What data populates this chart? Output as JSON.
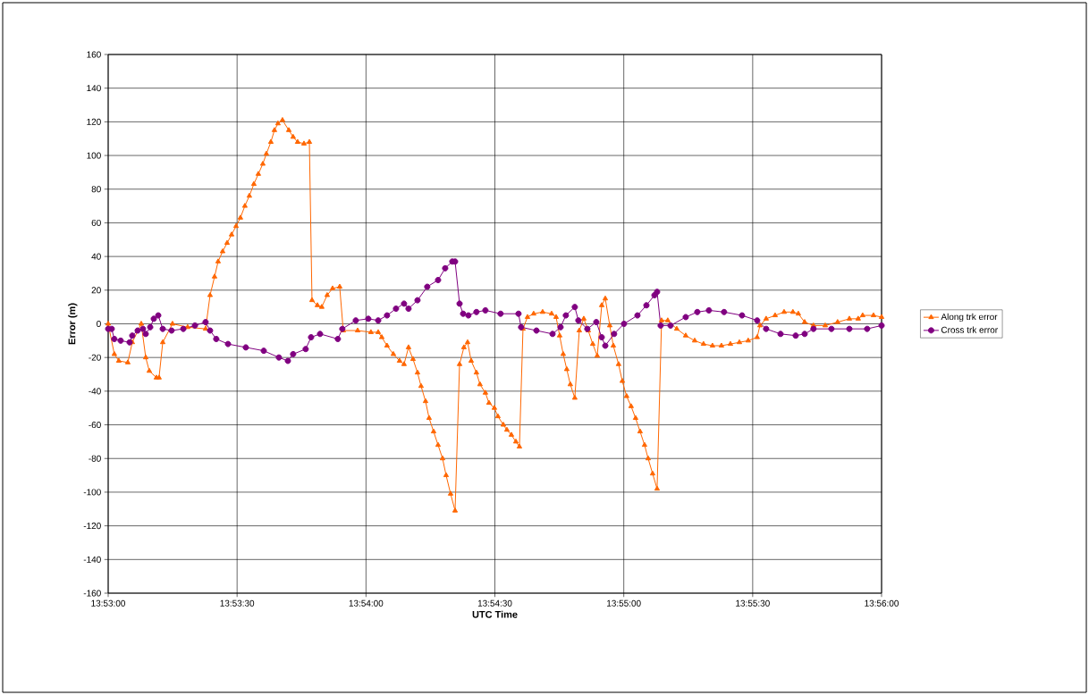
{
  "chart_data": {
    "type": "line",
    "xlabel": "UTC Time",
    "ylabel": "Error (m)",
    "xlim": [
      13.883333,
      13.933333
    ],
    "ylim": [
      -160,
      160
    ],
    "xticks": [
      {
        "value": 13.883333,
        "label": "13:53:00"
      },
      {
        "value": 13.891667,
        "label": "13:53:30"
      },
      {
        "value": 13.9,
        "label": "13:54:00"
      },
      {
        "value": 13.908333,
        "label": "13:54:30"
      },
      {
        "value": 13.916667,
        "label": "13:55:00"
      },
      {
        "value": 13.925,
        "label": "13:55:30"
      },
      {
        "value": 13.933333,
        "label": "13:56:00"
      }
    ],
    "yticks": [
      -160,
      -140,
      -120,
      -100,
      -80,
      -60,
      -40,
      -20,
      0,
      20,
      40,
      60,
      80,
      100,
      120,
      140,
      160
    ],
    "grid": true,
    "legend": "right",
    "line_style": "solid",
    "series": [
      {
        "name": "Along trk error",
        "color": "#ff6600",
        "marker": "triangle",
        "x": [
          13.883333,
          13.88373,
          13.88402,
          13.8846,
          13.88489,
          13.88547,
          13.88576,
          13.88599,
          13.88645,
          13.88662,
          13.88686,
          13.88749,
          13.88847,
          13.88963,
          13.88992,
          13.89021,
          13.89044,
          13.89073,
          13.89102,
          13.89131,
          13.8916,
          13.89188,
          13.89217,
          13.89246,
          13.89275,
          13.89304,
          13.89333,
          13.89356,
          13.89385,
          13.89408,
          13.89431,
          13.8946,
          13.89501,
          13.89529,
          13.89558,
          13.89599,
          13.89634,
          13.89651,
          13.89686,
          13.89714,
          13.89749,
          13.89784,
          13.8983,
          13.89853,
          13.89946,
          13.90032,
          13.90079,
          13.90102,
          13.90136,
          13.90177,
          13.90217,
          13.90246,
          13.90275,
          13.90304,
          13.90333,
          13.90356,
          13.90385,
          13.90408,
          13.90437,
          13.90466,
          13.90495,
          13.90518,
          13.90547,
          13.90576,
          13.90605,
          13.90633,
          13.90657,
          13.9068,
          13.90714,
          13.90737,
          13.90772,
          13.90795,
          13.9083,
          13.90853,
          13.90888,
          13.90911,
          13.9094,
          13.90969,
          13.90992,
          13.91015,
          13.91044,
          13.91084,
          13.91142,
          13.912,
          13.91229,
          13.91252,
          13.91275,
          13.91298,
          13.91321,
          13.9135,
          13.91379,
          13.91408,
          13.91437,
          13.91466,
          13.91495,
          13.91524,
          13.91547,
          13.91576,
          13.91599,
          13.91633,
          13.91657,
          13.91685,
          13.91714,
          13.91743,
          13.91772,
          13.91801,
          13.91824,
          13.91853,
          13.91882,
          13.91911,
          13.91951,
          13.92009,
          13.92067,
          13.92125,
          13.92182,
          13.9224,
          13.92298,
          13.92356,
          13.92414,
          13.92471,
          13.92529,
          13.92547,
          13.92587,
          13.92645,
          13.92703,
          13.9276,
          13.92795,
          13.92836,
          13.92893,
          13.92969,
          13.93049,
          13.93125,
          13.93182,
          13.93211,
          13.93281,
          13.933333
        ],
        "values": [
          0,
          -18,
          -22,
          -23,
          -11,
          0,
          -20,
          -28,
          -32,
          -32,
          -11,
          0,
          -2,
          -3,
          17,
          28,
          37,
          43,
          48,
          53,
          58,
          63,
          70,
          76,
          83,
          89,
          95,
          101,
          108,
          115,
          119,
          121,
          115,
          111,
          108,
          107,
          108,
          14,
          11,
          10,
          17,
          21,
          22,
          -4,
          -4,
          -5,
          -5,
          -8,
          -13,
          -18,
          -22,
          -24,
          -14,
          -21,
          -29,
          -37,
          -46,
          -56,
          -64,
          -72,
          -80,
          -90,
          -101,
          -111,
          -24,
          -14,
          -11,
          -22,
          -29,
          -36,
          -41,
          -47,
          -50,
          -55,
          -60,
          -63,
          -66,
          -70,
          -73,
          -3,
          4,
          6,
          7,
          6,
          4,
          -7,
          -18,
          -27,
          -36,
          -44,
          -4,
          3,
          -4,
          -12,
          -19,
          11,
          15,
          -1,
          -13,
          -24,
          -34,
          -43,
          -49,
          -56,
          -64,
          -72,
          -80,
          -89,
          -98,
          2,
          2,
          -3,
          -7,
          -10,
          -12,
          -13,
          -13,
          -12,
          -11,
          -10,
          -8,
          -1,
          3,
          5,
          7,
          7,
          6,
          1,
          -1,
          -1,
          1,
          3,
          3,
          5,
          5,
          4
        ]
      },
      {
        "name": "Cross trk error",
        "color": "#800080",
        "marker": "circle",
        "x": [
          13.883333,
          13.88356,
          13.88373,
          13.88414,
          13.88472,
          13.88489,
          13.88524,
          13.88558,
          13.88576,
          13.88605,
          13.88628,
          13.88657,
          13.88686,
          13.88743,
          13.88819,
          13.88894,
          13.88963,
          13.88992,
          13.89032,
          13.89108,
          13.89223,
          13.89339,
          13.89437,
          13.89495,
          13.89529,
          13.8961,
          13.89645,
          13.89703,
          13.89818,
          13.89847,
          13.89934,
          13.90015,
          13.90079,
          13.90136,
          13.90194,
          13.90246,
          13.90275,
          13.90333,
          13.90396,
          13.90466,
          13.90512,
          13.90558,
          13.90576,
          13.90605,
          13.90628,
          13.90662,
          13.90714,
          13.90772,
          13.9087,
          13.90986,
          13.91003,
          13.91102,
          13.91206,
          13.91258,
          13.91292,
          13.9135,
          13.91373,
          13.91431,
          13.91489,
          13.91524,
          13.91547,
          13.91604,
          13.91668,
          13.91755,
          13.91813,
          13.91865,
          13.91882,
          13.91905,
          13.91969,
          13.92067,
          13.92142,
          13.92217,
          13.92315,
          13.92431,
          13.92529,
          13.92587,
          13.9268,
          13.92778,
          13.92836,
          13.92893,
          13.93009,
          13.93125,
          13.9324,
          13.933333
        ],
        "values": [
          -3,
          -3,
          -9,
          -10,
          -11,
          -7,
          -4,
          -3,
          -6,
          -2,
          3,
          5,
          -3,
          -4,
          -3,
          -1,
          1,
          -4,
          -9,
          -12,
          -14,
          -16,
          -20,
          -22,
          -18,
          -15,
          -8,
          -6,
          -9,
          -3,
          2,
          3,
          2,
          5,
          9,
          12,
          9,
          14,
          22,
          26,
          33,
          37,
          37,
          12,
          6,
          5,
          7,
          8,
          6,
          6,
          -2,
          -4,
          -6,
          -2,
          5,
          10,
          2,
          -3,
          1,
          -8,
          -13,
          -6,
          0,
          5,
          11,
          17,
          19,
          -1,
          -1,
          4,
          7,
          8,
          7,
          5,
          2,
          -3,
          -6,
          -7,
          -6,
          -3,
          -3,
          -3,
          -3,
          -1
        ]
      }
    ]
  }
}
